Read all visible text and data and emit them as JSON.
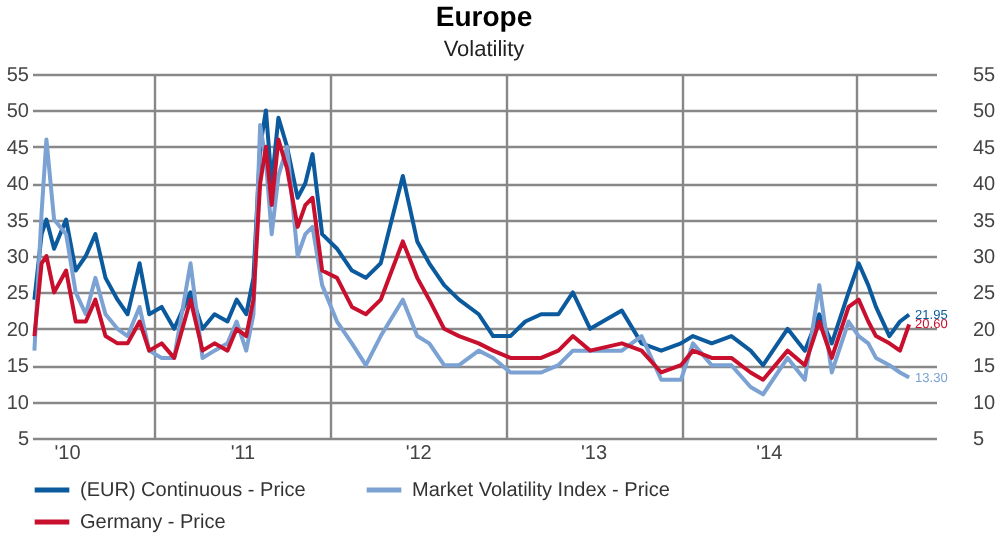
{
  "chart_data": {
    "type": "line",
    "title": "Europe",
    "subtitle": "Volatility",
    "x": [
      "2010-04-25",
      "2010-05-10",
      "2010-05-20",
      "2010-06-05",
      "2010-06-30",
      "2010-07-20",
      "2010-08-10",
      "2010-08-30",
      "2010-09-20",
      "2010-10-15",
      "2010-11-05",
      "2010-11-30",
      "2010-12-20",
      "2011-01-15",
      "2011-02-10",
      "2011-03-16",
      "2011-04-10",
      "2011-05-05",
      "2011-06-01",
      "2011-06-20",
      "2011-07-10",
      "2011-07-25",
      "2011-08-08",
      "2011-08-20",
      "2011-09-01",
      "2011-09-15",
      "2011-10-03",
      "2011-10-25",
      "2011-11-10",
      "2011-11-25",
      "2011-12-15",
      "2012-01-15",
      "2012-02-15",
      "2012-03-15",
      "2012-04-15",
      "2012-05-31",
      "2012-06-30",
      "2012-07-25",
      "2012-08-25",
      "2012-09-25",
      "2012-11-05",
      "2012-12-05",
      "2013-01-10",
      "2013-02-10",
      "2013-03-15",
      "2013-04-20",
      "2013-05-20",
      "2013-06-25",
      "2013-08-30",
      "2013-10-10",
      "2013-11-20",
      "2013-12-31",
      "2014-01-25",
      "2014-03-05",
      "2014-04-15",
      "2014-05-25",
      "2014-06-20",
      "2014-08-10",
      "2014-09-15",
      "2014-10-15",
      "2014-11-10",
      "2014-12-15",
      "2015-01-05",
      "2015-01-25",
      "2015-02-10",
      "2015-03-10",
      "2015-04-01",
      "2015-04-20"
    ],
    "series": [
      {
        "name": "(EUR) Continuous - Price",
        "color": "#0b5a9e",
        "values": [
          24,
          33,
          35,
          31,
          35,
          28,
          30,
          33,
          27,
          24,
          22,
          29,
          22,
          23,
          20,
          25,
          20,
          22,
          21,
          24,
          22,
          27,
          45,
          50,
          40,
          49,
          45,
          38,
          40,
          44,
          33,
          31,
          28,
          27,
          29,
          41,
          32,
          29,
          26,
          24,
          22,
          19,
          19,
          21,
          22,
          22,
          25,
          20,
          22.5,
          18,
          17,
          18,
          19,
          18,
          19,
          17,
          15,
          20,
          17,
          22,
          18,
          25,
          29,
          26,
          23,
          19,
          21,
          21.95
        ],
        "value_labels": [
          null,
          null,
          null,
          null,
          null,
          null,
          null,
          null,
          null,
          null,
          null,
          null,
          null,
          null,
          null,
          null,
          null,
          null,
          null,
          null,
          null,
          null,
          null,
          null,
          null,
          null,
          null,
          null,
          null,
          null,
          null,
          null,
          null,
          null,
          null,
          null,
          null,
          null,
          null,
          null,
          null,
          null,
          null,
          null,
          null,
          null,
          null,
          null,
          null,
          null,
          null,
          null,
          null,
          null,
          null,
          null,
          null,
          null,
          null,
          null,
          null,
          null,
          null,
          null,
          null,
          null,
          null,
          "21.95"
        ]
      },
      {
        "name": "Market Volatility Index - Price",
        "color": "#7ba2d3",
        "values": [
          17,
          36,
          46,
          35,
          33,
          25,
          22,
          27,
          22,
          20,
          19,
          23,
          17,
          16,
          16,
          29,
          16,
          17,
          18,
          21,
          17,
          22,
          48,
          43,
          33,
          41,
          45,
          30,
          33,
          34,
          26,
          21,
          18,
          15,
          19,
          24,
          19,
          18,
          15,
          15,
          17,
          16,
          14,
          14,
          14,
          15,
          17,
          17,
          17,
          19,
          13,
          13,
          18,
          15,
          15,
          12,
          11,
          16,
          13,
          26,
          14,
          21,
          19,
          18,
          16,
          15,
          14,
          13.3
        ],
        "value_labels": [
          null,
          null,
          null,
          null,
          null,
          null,
          null,
          null,
          null,
          null,
          null,
          null,
          null,
          null,
          null,
          null,
          null,
          null,
          null,
          null,
          null,
          null,
          null,
          null,
          null,
          null,
          null,
          null,
          null,
          null,
          null,
          null,
          null,
          null,
          null,
          null,
          null,
          null,
          null,
          null,
          null,
          null,
          null,
          null,
          null,
          null,
          null,
          null,
          null,
          null,
          null,
          null,
          null,
          null,
          null,
          null,
          null,
          null,
          null,
          null,
          null,
          null,
          null,
          null,
          null,
          null,
          null,
          "13.30"
        ]
      },
      {
        "name": "Germany - Price",
        "color": "#c8102e",
        "values": [
          19,
          29,
          30,
          25,
          28,
          21,
          21,
          24,
          19,
          18,
          18,
          21,
          17,
          18,
          16,
          24,
          17,
          18,
          17,
          20,
          19,
          24,
          40,
          45,
          37,
          46,
          42,
          34,
          37,
          38,
          28,
          27,
          23,
          22,
          24,
          32,
          27,
          24,
          20,
          19,
          18,
          17,
          16,
          16,
          16,
          17,
          19,
          17,
          18,
          17,
          14,
          15,
          17,
          16,
          16,
          14,
          13,
          17,
          15,
          21,
          16,
          23,
          24,
          21,
          19,
          18,
          17,
          20.6
        ],
        "value_labels": [
          null,
          null,
          null,
          null,
          null,
          null,
          null,
          null,
          null,
          null,
          null,
          null,
          null,
          null,
          null,
          null,
          null,
          null,
          null,
          null,
          null,
          null,
          null,
          null,
          null,
          null,
          null,
          null,
          null,
          null,
          null,
          null,
          null,
          null,
          null,
          null,
          null,
          null,
          null,
          null,
          null,
          null,
          null,
          null,
          null,
          null,
          null,
          null,
          null,
          null,
          null,
          null,
          null,
          null,
          null,
          null,
          null,
          null,
          null,
          null,
          null,
          null,
          null,
          null,
          null,
          null,
          null,
          "20.60"
        ]
      }
    ],
    "xlim": [
      "2010-04-20",
      "2015-06-15"
    ],
    "xticks": [
      {
        "value": "2010-07-01",
        "label": "'10"
      },
      {
        "value": "2011-01-01",
        "label": null
      },
      {
        "value": "2011-07-01",
        "label": "'11"
      },
      {
        "value": "2012-01-01",
        "label": null
      },
      {
        "value": "2012-07-01",
        "label": "'12"
      },
      {
        "value": "2013-01-01",
        "label": null
      },
      {
        "value": "2013-07-01",
        "label": "'13"
      },
      {
        "value": "2014-01-01",
        "label": null
      },
      {
        "value": "2014-07-01",
        "label": "'14"
      },
      {
        "value": "2015-01-01",
        "label": null
      }
    ],
    "ylim": [
      5,
      55
    ],
    "yticks": [
      5,
      10,
      15,
      20,
      25,
      30,
      35,
      40,
      45,
      50,
      55
    ],
    "y2lim": [
      5,
      55
    ],
    "y2ticks": [
      5,
      10,
      15,
      20,
      25,
      30,
      35,
      40,
      45,
      50,
      55
    ],
    "grid": true,
    "legend": "bottom",
    "marker": "none",
    "line_style": "solid"
  }
}
